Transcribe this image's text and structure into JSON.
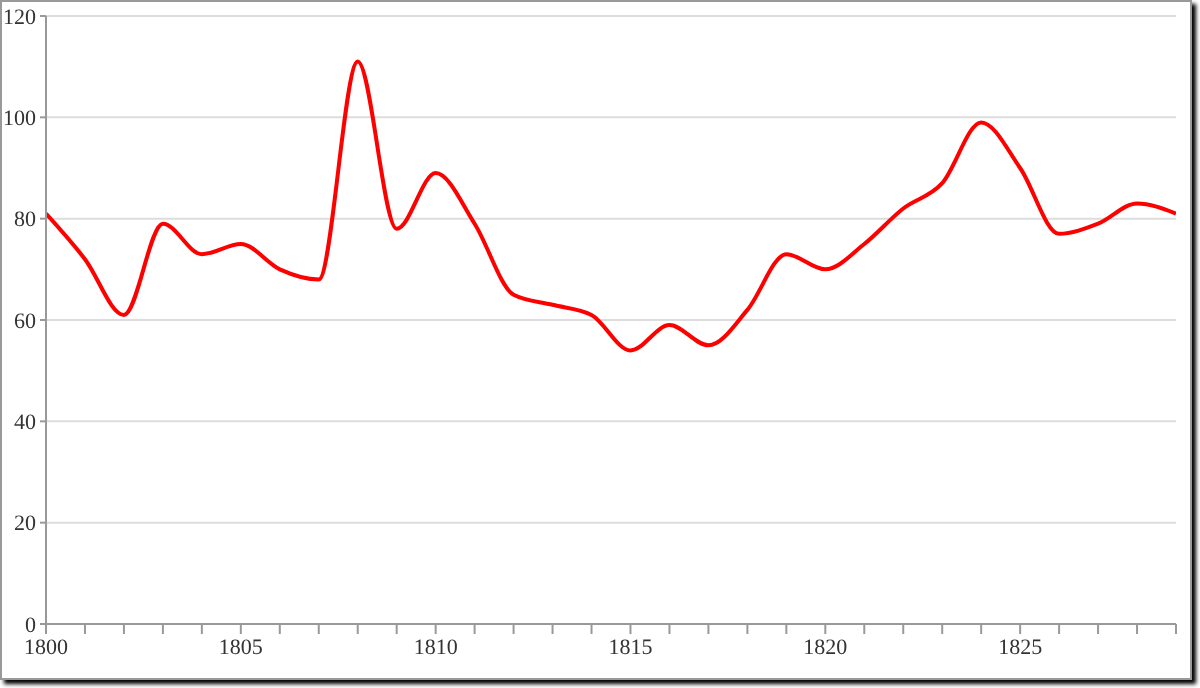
{
  "chart_data": {
    "type": "line",
    "x": [
      1800,
      1801,
      1802,
      1803,
      1804,
      1805,
      1806,
      1807,
      1808,
      1809,
      1810,
      1811,
      1812,
      1813,
      1814,
      1815,
      1816,
      1817,
      1818,
      1819,
      1820,
      1821,
      1822,
      1823,
      1824,
      1825,
      1826,
      1827,
      1828,
      1829
    ],
    "series": [
      {
        "color": "#ff0000",
        "values": [
          81,
          72,
          61,
          79,
          73,
          75,
          70,
          68,
          111,
          78,
          89,
          79,
          65,
          63,
          61,
          54,
          59,
          55,
          62,
          73,
          70,
          75,
          82,
          87,
          99,
          90,
          77,
          79,
          83,
          81
        ]
      }
    ],
    "xlim": [
      1800,
      1829
    ],
    "xticks": [
      1800,
      {
        "value": 1801,
        "label": null
      },
      {
        "value": 1802,
        "label": null
      },
      {
        "value": 1803,
        "label": null
      },
      {
        "value": 1804,
        "label": null
      },
      1805,
      {
        "value": 1806,
        "label": null
      },
      {
        "value": 1807,
        "label": null
      },
      {
        "value": 1808,
        "label": null
      },
      {
        "value": 1809,
        "label": null
      },
      1810,
      {
        "value": 1811,
        "label": null
      },
      {
        "value": 1812,
        "label": null
      },
      {
        "value": 1813,
        "label": null
      },
      {
        "value": 1814,
        "label": null
      },
      1815,
      {
        "value": 1816,
        "label": null
      },
      {
        "value": 1817,
        "label": null
      },
      {
        "value": 1818,
        "label": null
      },
      {
        "value": 1819,
        "label": null
      },
      1820,
      {
        "value": 1821,
        "label": null
      },
      {
        "value": 1822,
        "label": null
      },
      {
        "value": 1823,
        "label": null
      },
      {
        "value": 1824,
        "label": null
      },
      1825,
      {
        "value": 1826,
        "label": null
      },
      {
        "value": 1827,
        "label": null
      },
      {
        "value": 1828,
        "label": null
      },
      {
        "value": 1829,
        "label": null
      }
    ],
    "ylim": [
      0,
      120
    ],
    "yticks": [
      0,
      20,
      40,
      60,
      80,
      100,
      120
    ],
    "grid": "y",
    "marker": "none",
    "line_style": "solid",
    "legend": false
  }
}
